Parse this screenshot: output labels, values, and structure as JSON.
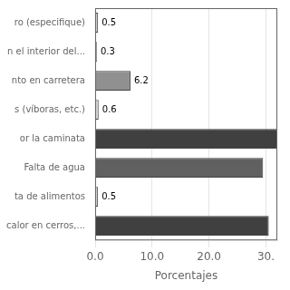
{
  "chart_data": {
    "type": "bar",
    "orientation": "horizontal",
    "xlabel": "Porcentajes",
    "categories": [
      "ro (especifique)",
      "n el interior del...",
      "nto en carretera",
      "s (víboras, etc.)",
      "or la caminata",
      "Falta de agua",
      "ta de alimentos",
      "calor en cerros,..."
    ],
    "values": [
      0.5,
      0.3,
      6.2,
      0.6,
      32.0,
      29.5,
      0.5,
      30.5
    ],
    "value_labels": [
      "0.5",
      "0.3",
      "6.2",
      "0.6",
      null,
      null,
      "0.5",
      null
    ],
    "colors": [
      "#d0d0d0",
      "#d0d0d0",
      "#909090",
      "#d0d0d0",
      "#404040",
      "#606060",
      "#d0d0d0",
      "#404040"
    ],
    "xlim": [
      0,
      32
    ],
    "xticks": [
      {
        "value": 0.0,
        "label": "0.0"
      },
      {
        "value": 10.0,
        "label": "10.0"
      },
      {
        "value": 20.0,
        "label": "20.0"
      },
      {
        "value": 30.0,
        "label": "30."
      }
    ],
    "grid": true
  }
}
